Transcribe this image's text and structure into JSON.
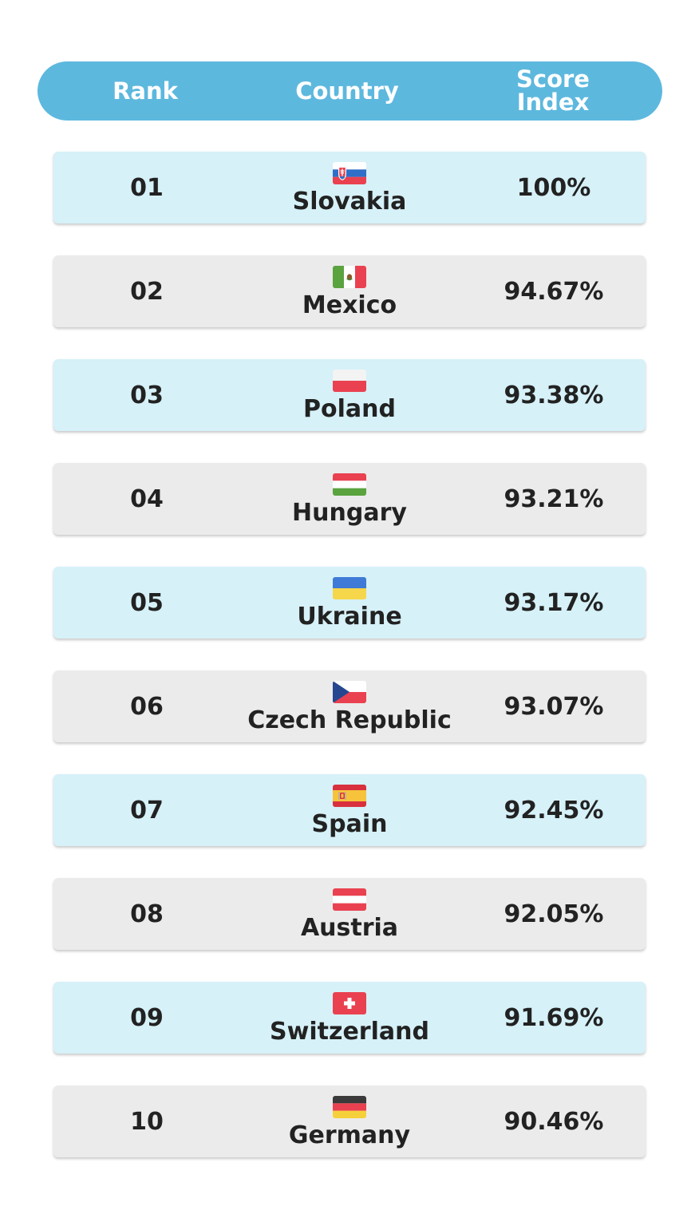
{
  "chart_data": {
    "type": "table",
    "columns": [
      "Rank",
      "Country",
      "Score Index"
    ],
    "header": {
      "rank": "Rank",
      "country": "Country",
      "score_line1": "Score",
      "score_line2": "Index"
    },
    "rows": [
      {
        "rank": "01",
        "country": "Slovakia",
        "score": "100%",
        "flag": "slovakia-flag"
      },
      {
        "rank": "02",
        "country": "Mexico",
        "score": "94.67%",
        "flag": "mexico-flag"
      },
      {
        "rank": "03",
        "country": "Poland",
        "score": "93.38%",
        "flag": "poland-flag"
      },
      {
        "rank": "04",
        "country": "Hungary",
        "score": "93.21%",
        "flag": "hungary-flag"
      },
      {
        "rank": "05",
        "country": "Ukraine",
        "score": "93.17%",
        "flag": "ukraine-flag"
      },
      {
        "rank": "06",
        "country": "Czech Republic",
        "score": "93.07%",
        "flag": "czech-republic-flag"
      },
      {
        "rank": "07",
        "country": "Spain",
        "score": "92.45%",
        "flag": "spain-flag"
      },
      {
        "rank": "08",
        "country": "Austria",
        "score": "92.05%",
        "flag": "austria-flag"
      },
      {
        "rank": "09",
        "country": "Switzerland",
        "score": "91.69%",
        "flag": "switzerland-flag"
      },
      {
        "rank": "10",
        "country": "Germany",
        "score": "90.46%",
        "flag": "germany-flag"
      }
    ],
    "colors": {
      "header": "#5db8de",
      "row_blue": "#d6f1f8",
      "row_gray": "#ebebeb",
      "text": "#222222"
    }
  }
}
